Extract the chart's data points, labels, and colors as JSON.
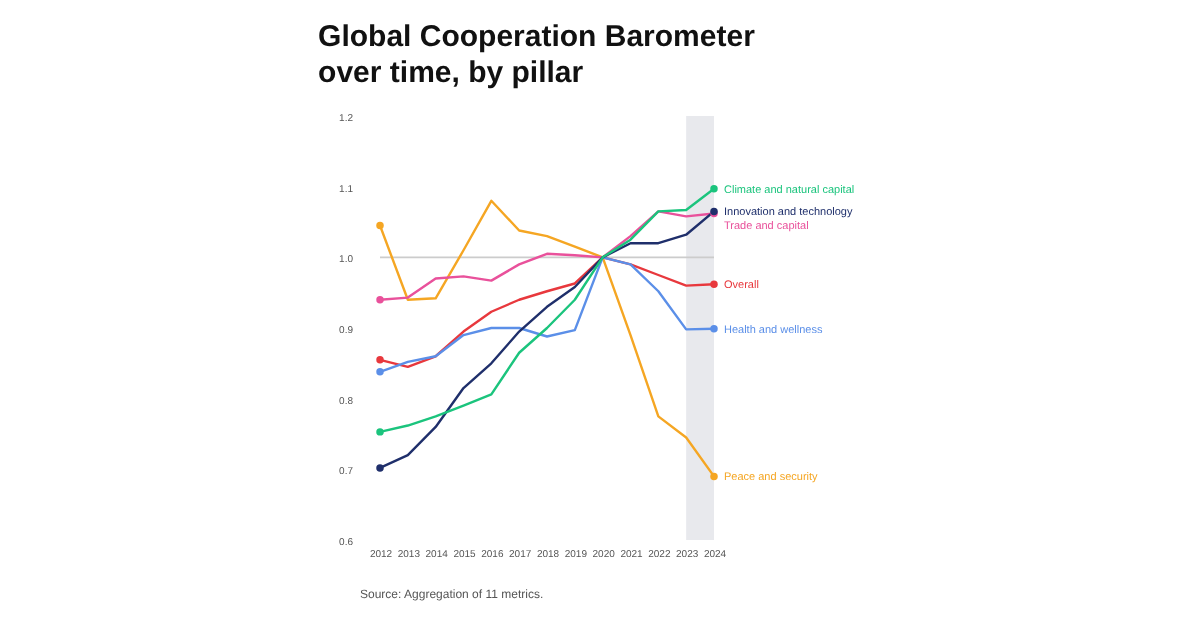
{
  "chart_data": {
    "type": "line",
    "title": "Global Cooperation Barometer over time, by pillar",
    "x": [
      2012,
      2013,
      2014,
      2015,
      2016,
      2017,
      2018,
      2019,
      2020,
      2021,
      2022,
      2023,
      2024
    ],
    "series": [
      {
        "name": "Peace and security",
        "color": "#f5a623",
        "values": [
          1.045,
          0.94,
          0.942,
          1.01,
          1.08,
          1.038,
          1.03,
          1.015,
          1.0,
          0.89,
          0.775,
          0.745,
          0.69
        ]
      },
      {
        "name": "Trade and capital",
        "color": "#e9519b",
        "values": [
          0.94,
          0.943,
          0.97,
          0.973,
          0.967,
          0.99,
          1.005,
          1.003,
          1.0,
          1.03,
          1.065,
          1.058,
          1.062
        ]
      },
      {
        "name": "Overall",
        "color": "#e8383d",
        "values": [
          0.855,
          0.845,
          0.86,
          0.895,
          0.923,
          0.94,
          0.952,
          0.963,
          1.0,
          0.99,
          0.975,
          0.96,
          0.962
        ]
      },
      {
        "name": "Health and wellness",
        "color": "#5b8fe8",
        "values": [
          0.838,
          0.852,
          0.86,
          0.89,
          0.9,
          0.9,
          0.888,
          0.897,
          1.0,
          0.99,
          0.952,
          0.898,
          0.899
        ]
      },
      {
        "name": "Innovation and technology",
        "color": "#1f2f6b",
        "values": [
          0.702,
          0.72,
          0.76,
          0.815,
          0.85,
          0.895,
          0.93,
          0.958,
          1.0,
          1.02,
          1.02,
          1.032,
          1.065
        ]
      },
      {
        "name": "Climate and natural capital",
        "color": "#1bc47d",
        "values": [
          0.753,
          0.762,
          0.775,
          0.79,
          0.806,
          0.865,
          0.9,
          0.94,
          1.0,
          1.025,
          1.065,
          1.067,
          1.097
        ]
      }
    ],
    "xlim": [
      2012,
      2024
    ],
    "xticks": [
      2012,
      2013,
      2014,
      2015,
      2016,
      2017,
      2018,
      2019,
      2020,
      2021,
      2022,
      2023,
      2024
    ],
    "ylim": [
      0.6,
      1.2
    ],
    "yticks": [
      0.6,
      0.7,
      0.8,
      0.9,
      {
        "value": 1.0,
        "label": "1.0"
      },
      1.1,
      1.2
    ],
    "ref_lines": [
      {
        "axis": "y",
        "value": 1.0,
        "color": "#cccccc"
      }
    ],
    "bands": [
      {
        "axis": "x",
        "from": 2023,
        "to": 2024,
        "color": "#e8e9ed"
      }
    ],
    "grid": false,
    "annotations": [
      "Source: Aggregation of 11 metrics."
    ]
  }
}
